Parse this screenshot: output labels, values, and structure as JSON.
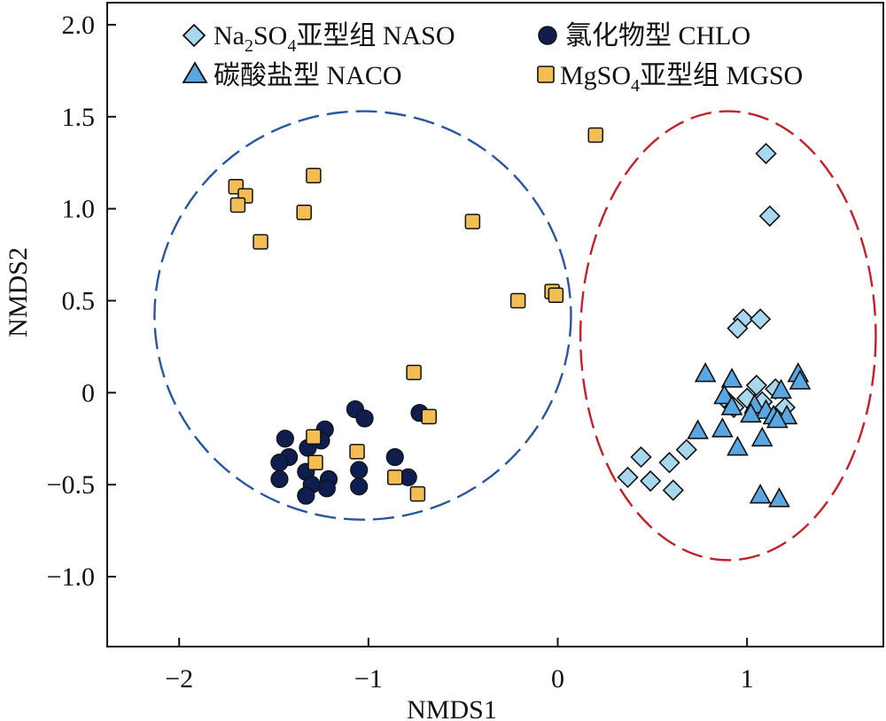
{
  "chart_data": {
    "type": "scatter",
    "title": "",
    "xlabel": "NMDS1",
    "ylabel": "NMDS2",
    "xlim": [
      -2.38,
      1.72
    ],
    "ylim": [
      -1.38,
      2.12
    ],
    "xticks": [
      -2,
      -1,
      0,
      1
    ],
    "xtick_labels": [
      "−2",
      "−1",
      "0",
      "1"
    ],
    "yticks": [
      2.0,
      1.5,
      1.0,
      0.5,
      0,
      -0.5,
      -1.0
    ],
    "ytick_labels": [
      "2.0",
      "1.5",
      "1.0",
      "0.5",
      "0",
      "−0.5",
      "−1.0"
    ],
    "grid": false,
    "legend_position": "top",
    "series": [
      {
        "name": "Na₂SO₄亚型组 NASO",
        "marker": "diamond",
        "color": "#a8d8ee",
        "points": [
          [
            1.1,
            1.3
          ],
          [
            1.12,
            0.96
          ],
          [
            0.98,
            0.4
          ],
          [
            1.07,
            0.4
          ],
          [
            0.95,
            0.35
          ],
          [
            1.05,
            0.04
          ],
          [
            1.15,
            0.02
          ],
          [
            0.9,
            -0.05
          ],
          [
            1.0,
            -0.03
          ],
          [
            1.2,
            -0.08
          ],
          [
            0.93,
            -0.08
          ],
          [
            1.08,
            -0.05
          ],
          [
            0.68,
            -0.31
          ],
          [
            0.59,
            -0.38
          ],
          [
            0.44,
            -0.35
          ],
          [
            0.37,
            -0.46
          ],
          [
            0.49,
            -0.48
          ],
          [
            0.61,
            -0.53
          ]
        ]
      },
      {
        "name": "氯化物型 CHLO",
        "marker": "circle",
        "color": "#0f1e4e",
        "points": [
          [
            -1.07,
            -0.09
          ],
          [
            -1.02,
            -0.14
          ],
          [
            -0.73,
            -0.11
          ],
          [
            -1.44,
            -0.25
          ],
          [
            -1.23,
            -0.2
          ],
          [
            -1.25,
            -0.26
          ],
          [
            -1.32,
            -0.3
          ],
          [
            -1.42,
            -0.35
          ],
          [
            -1.47,
            -0.38
          ],
          [
            -1.47,
            -0.47
          ],
          [
            -1.33,
            -0.43
          ],
          [
            -1.3,
            -0.5
          ],
          [
            -1.21,
            -0.47
          ],
          [
            -1.22,
            -0.52
          ],
          [
            -1.33,
            -0.56
          ],
          [
            -1.05,
            -0.42
          ],
          [
            -1.05,
            -0.51
          ],
          [
            -0.86,
            -0.35
          ],
          [
            -0.79,
            -0.46
          ]
        ]
      },
      {
        "name": "碳酸盐型 NACO",
        "marker": "triangle",
        "color": "#5aa6e3",
        "points": [
          [
            0.78,
            0.1
          ],
          [
            0.92,
            0.07
          ],
          [
            1.27,
            0.1
          ],
          [
            1.28,
            0.06
          ],
          [
            1.18,
            0.01
          ],
          [
            0.88,
            -0.02
          ],
          [
            0.92,
            -0.08
          ],
          [
            1.04,
            -0.07
          ],
          [
            1.1,
            -0.1
          ],
          [
            1.14,
            -0.13
          ],
          [
            1.21,
            -0.13
          ],
          [
            1.16,
            -0.15
          ],
          [
            1.02,
            -0.12
          ],
          [
            0.74,
            -0.21
          ],
          [
            0.87,
            -0.2
          ],
          [
            1.08,
            -0.25
          ],
          [
            0.95,
            -0.3
          ],
          [
            1.07,
            -0.56
          ],
          [
            1.17,
            -0.58
          ]
        ]
      },
      {
        "name": "MgSO₄亚型组 MGSO",
        "marker": "square",
        "color": "#f2bd52",
        "points": [
          [
            0.2,
            1.4
          ],
          [
            -1.7,
            1.12
          ],
          [
            -1.65,
            1.07
          ],
          [
            -1.69,
            1.02
          ],
          [
            -1.29,
            1.18
          ],
          [
            -1.34,
            0.98
          ],
          [
            -1.57,
            0.82
          ],
          [
            -0.45,
            0.93
          ],
          [
            -0.21,
            0.5
          ],
          [
            -0.03,
            0.55
          ],
          [
            -0.01,
            0.53
          ],
          [
            -0.76,
            0.11
          ],
          [
            -0.68,
            -0.13
          ],
          [
            -1.29,
            -0.24
          ],
          [
            -1.06,
            -0.32
          ],
          [
            -1.28,
            -0.38
          ],
          [
            -0.86,
            -0.46
          ],
          [
            -0.74,
            -0.55
          ]
        ]
      }
    ],
    "ellipses": [
      {
        "cx": -1.03,
        "cy": 0.42,
        "rx": 1.1,
        "ry": 1.11,
        "color": "#2a55a0"
      },
      {
        "cx": 0.9,
        "cy": 0.31,
        "rx": 0.78,
        "ry": 1.22,
        "color": "#c4202a"
      }
    ]
  },
  "legend": [
    {
      "marker": "diamond",
      "color": "#a8d8ee",
      "label_parts": [
        "Na",
        "2",
        "SO",
        "4",
        "亚型组 NASO"
      ]
    },
    {
      "marker": "circle",
      "color": "#0f1e4e",
      "label_parts": [
        "氯化物型 CHLO"
      ]
    },
    {
      "marker": "triangle",
      "color": "#5aa6e3",
      "label_parts": [
        "碳酸盐型 NACO"
      ]
    },
    {
      "marker": "square",
      "color": "#f2bd52",
      "label_parts": [
        "MgSO",
        "4",
        "亚型组 MGSO"
      ]
    }
  ]
}
